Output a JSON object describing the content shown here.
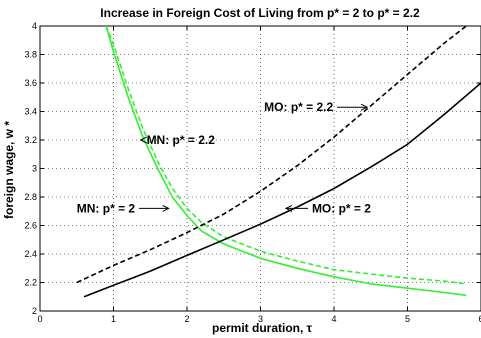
{
  "chart_data": {
    "type": "line",
    "title": "Increase in Foreign Cost of Living from p* = 2 to p* = 2.2",
    "xlabel": "permit duration, τ",
    "ylabel": "foreign wage, w *",
    "xlim": [
      0,
      6
    ],
    "ylim": [
      2,
      4
    ],
    "xticks": [
      "0",
      "1",
      "2",
      "3",
      "4",
      "5",
      "6"
    ],
    "yticks": [
      "2",
      "2.2",
      "2.4",
      "2.6",
      "2.8",
      "3",
      "3.2",
      "3.4",
      "3.6",
      "3.8",
      "4"
    ],
    "grid": true,
    "series": [
      {
        "name": "MN: p* = 2",
        "color": "#33ee33",
        "dash": "solid",
        "x": [
          0.9,
          1.0,
          1.2,
          1.4,
          1.6,
          1.8,
          2.0,
          2.2,
          2.5,
          3.0,
          3.5,
          4.0,
          4.5,
          5.0,
          5.5,
          5.8
        ],
        "y": [
          4.0,
          3.82,
          3.5,
          3.22,
          3.0,
          2.8,
          2.67,
          2.56,
          2.47,
          2.37,
          2.3,
          2.24,
          2.19,
          2.16,
          2.13,
          2.11
        ]
      },
      {
        "name": "MN: p* = 2.2",
        "color": "#33ee33",
        "dash": "dashed",
        "x": [
          0.9,
          1.0,
          1.2,
          1.4,
          1.6,
          1.8,
          2.0,
          2.2,
          2.5,
          3.0,
          3.5,
          4.0,
          4.5,
          5.0,
          5.5,
          5.8
        ],
        "y": [
          4.0,
          3.87,
          3.56,
          3.28,
          3.05,
          2.86,
          2.72,
          2.62,
          2.52,
          2.42,
          2.35,
          2.29,
          2.26,
          2.23,
          2.21,
          2.19
        ]
      },
      {
        "name": "MO: p* = 2",
        "color": "#000000",
        "dash": "solid",
        "x": [
          0.6,
          1.0,
          1.5,
          2.0,
          2.5,
          3.0,
          3.5,
          4.0,
          4.5,
          5.0,
          5.5,
          6.0
        ],
        "y": [
          2.1,
          2.18,
          2.28,
          2.39,
          2.5,
          2.61,
          2.73,
          2.86,
          3.01,
          3.17,
          3.38,
          3.6
        ]
      },
      {
        "name": "MO: p* = 2.2",
        "color": "#000000",
        "dash": "dashed",
        "x": [
          0.5,
          1.0,
          1.5,
          2.0,
          2.5,
          3.0,
          3.5,
          4.0,
          4.5,
          5.0,
          5.5,
          5.8
        ],
        "y": [
          2.2,
          2.32,
          2.43,
          2.55,
          2.68,
          2.84,
          3.02,
          3.22,
          3.44,
          3.66,
          3.88,
          4.0
        ]
      }
    ],
    "annotations": [
      {
        "text": "MO: p* = 2.2",
        "x": 3.05,
        "y": 3.43,
        "arrow_to": [
          4.45,
          3.43
        ]
      },
      {
        "text": "MN: p* = 2.2",
        "x": 1.45,
        "y": 3.2,
        "arrow_to": [
          1.37,
          3.2
        ]
      },
      {
        "text": "MN: p* = 2",
        "x": 0.5,
        "y": 2.72,
        "arrow_to": [
          1.75,
          2.72
        ]
      },
      {
        "text": "MO: p* = 2",
        "x": 3.7,
        "y": 2.72,
        "arrow_to": [
          3.7,
          2.72
        ]
      }
    ]
  }
}
